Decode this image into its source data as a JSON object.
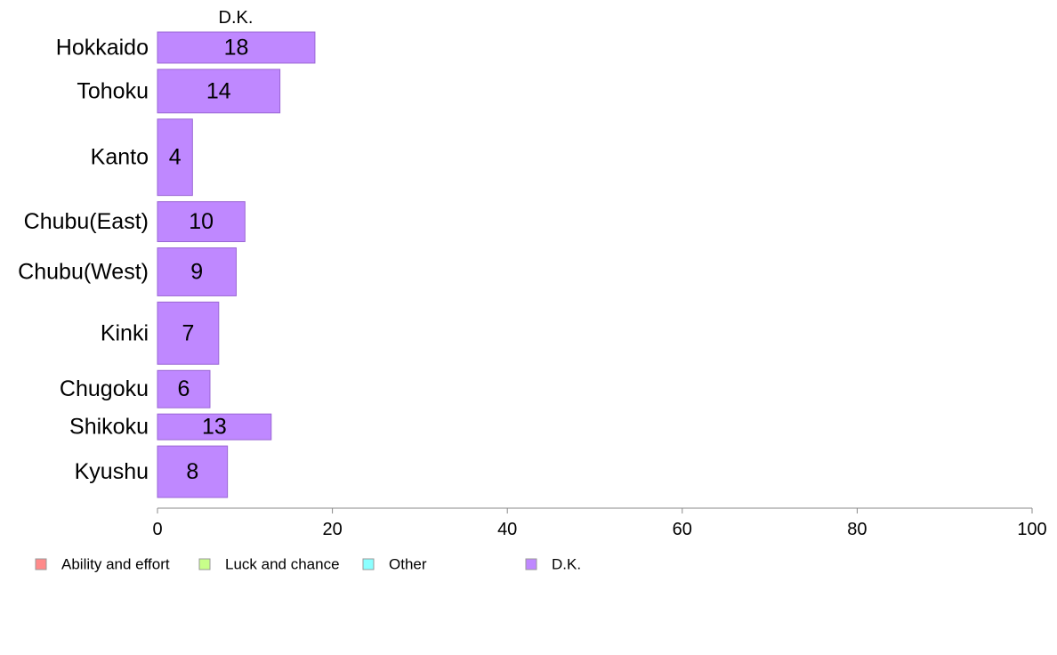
{
  "chart_data": {
    "type": "bar",
    "orientation": "horizontal",
    "column_title": "D.K.",
    "categories": [
      "Hokkaido",
      "Tohoku",
      "Kanto",
      "Chubu(East)",
      "Chubu(West)",
      "Kinki",
      "Chugoku",
      "Shikoku",
      "Kyushu"
    ],
    "series": [
      {
        "name": "D.K.",
        "values": [
          18,
          14,
          4,
          10,
          9,
          7,
          6,
          13,
          8
        ],
        "value_labels": [
          "18",
          "14",
          "4",
          "10",
          "9",
          "7",
          "6",
          "13",
          "8"
        ],
        "color": "#bf88ff"
      }
    ],
    "category_weights": [
      35,
      49,
      86,
      45,
      54,
      70,
      42,
      29,
      58
    ],
    "xlim": [
      0,
      100
    ],
    "xticks": [
      "0",
      "20",
      "40",
      "60",
      "80",
      "100"
    ],
    "legend": {
      "placement": "bottom-left",
      "entries": [
        {
          "label": "Ability and effort",
          "color": "#ff8a8a"
        },
        {
          "label": "Luck and chance",
          "color": "#c8ff8a"
        },
        {
          "label": "Other",
          "color": "#8affff"
        },
        {
          "label": "D.K.",
          "color": "#bf88ff"
        }
      ]
    },
    "grid": false
  }
}
